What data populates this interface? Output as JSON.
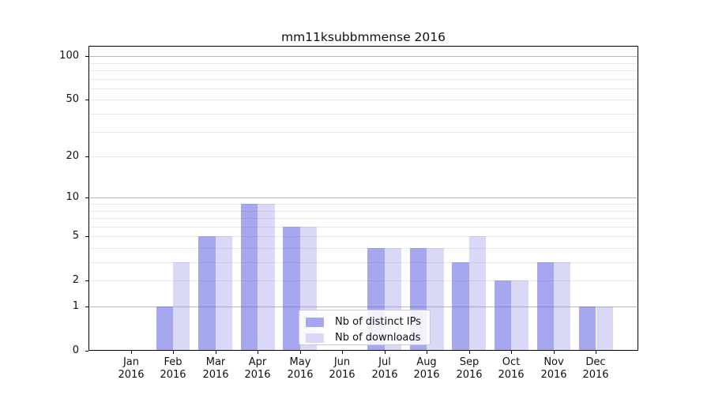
{
  "chart_data": {
    "type": "bar",
    "title": "mm11ksubbmmense 2016",
    "categories": [
      "Jan",
      "Feb",
      "Mar",
      "Apr",
      "May",
      "Jun",
      "Jul",
      "Aug",
      "Sep",
      "Oct",
      "Nov",
      "Dec"
    ],
    "year_label": "2016",
    "series": [
      {
        "name": "Nb of distinct IPs",
        "color": "rgba(95,95,228,0.55)",
        "legend_color": "#a7a7f0",
        "values": [
          0,
          1,
          5,
          9,
          6,
          0,
          4,
          4,
          3,
          2,
          3,
          1
        ]
      },
      {
        "name": "Nb of downloads",
        "color": "rgba(128,128,228,0.30)",
        "legend_color": "#d9d9f7",
        "values": [
          0,
          3,
          5,
          9,
          6,
          0,
          4,
          4,
          5,
          2,
          3,
          1
        ]
      }
    ],
    "xlabel": "",
    "ylabel": "",
    "yscale": "log1p",
    "yticks": [
      0,
      1,
      2,
      5,
      10,
      20,
      50,
      100
    ],
    "ylim": [
      0,
      118
    ],
    "grid": true,
    "legend_position": "lower-center",
    "colors": {
      "major_grid": "#b9b9b9",
      "minor_grid": "#e9e9e9",
      "axis": "#000000",
      "text": "#111111"
    }
  }
}
